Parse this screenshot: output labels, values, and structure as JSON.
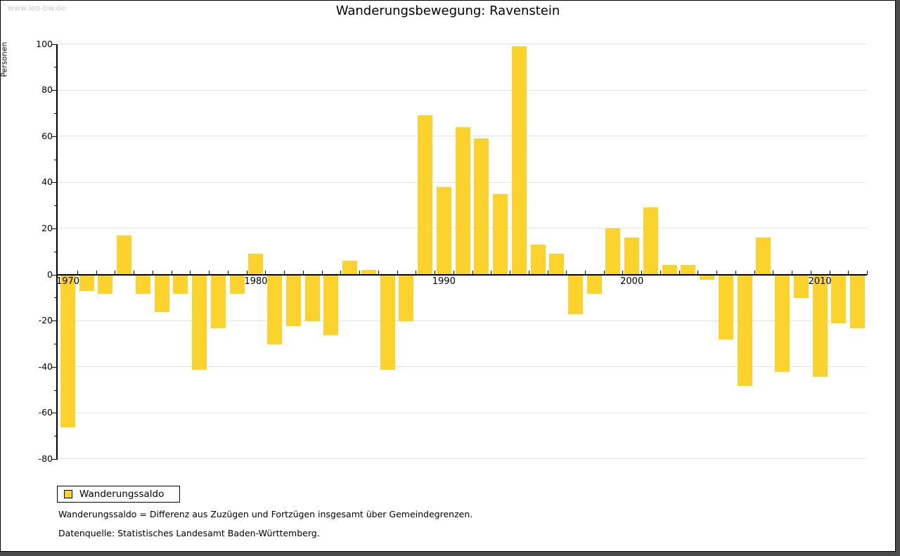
{
  "watermark": "www.leo-bw.de",
  "title": "Wanderungsbewegung: Ravenstein",
  "legend": {
    "label": "Wanderungssaldo"
  },
  "footnotes": {
    "definition": "Wanderungssaldo = Differenz aus Zuzügen und Fortzügen insgesamt über Gemeindegrenzen.",
    "source": "Datenquelle: Statistisches Landesamt Baden-Württemberg."
  },
  "chart_data": {
    "type": "bar",
    "title": "Wanderungsbewegung: Ravenstein",
    "ylabel": "Personen",
    "xlabel": "",
    "series_name": "Wanderungssaldo",
    "years": [
      1970,
      1971,
      1972,
      1973,
      1974,
      1975,
      1976,
      1977,
      1978,
      1979,
      1980,
      1981,
      1982,
      1983,
      1984,
      1985,
      1986,
      1987,
      1988,
      1989,
      1990,
      1991,
      1992,
      1993,
      1994,
      1995,
      1996,
      1997,
      1998,
      1999,
      2000,
      2001,
      2002,
      2003,
      2004,
      2005,
      2006,
      2007,
      2008,
      2009,
      2010,
      2011,
      2012
    ],
    "values": [
      -66,
      -7,
      -8,
      17,
      -8,
      -16,
      -8,
      -41,
      -23,
      -8,
      9,
      -30,
      -22,
      -20,
      -26,
      6,
      2,
      -41,
      -20,
      69,
      38,
      64,
      59,
      35,
      99,
      13,
      9,
      -17,
      -8,
      20,
      16,
      29,
      4,
      4,
      -2,
      -28,
      -48,
      16,
      -42,
      -10,
      -44,
      -21,
      -23
    ],
    "ylim": [
      -80,
      100
    ],
    "ytick_step": 20,
    "yticks": [
      100,
      80,
      60,
      40,
      20,
      0,
      -20,
      -40,
      -60,
      -80
    ],
    "x_decade_labels": [
      "1970",
      "1980",
      "1990",
      "2000",
      "2010"
    ],
    "grid": true,
    "legend_position": "bottom-left",
    "bar_color": "#fcd32d",
    "grid_color": "#e2e2e2",
    "axis_color": "#000000"
  }
}
